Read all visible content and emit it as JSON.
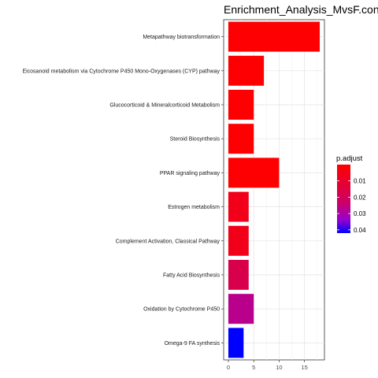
{
  "chart_data": {
    "type": "bar",
    "orientation": "horizontal",
    "title": "Enrichment_Analysis_MvsF.con_v",
    "xlabel": "",
    "ylabel": "",
    "xlim": [
      0,
      18
    ],
    "x_ticks": [
      0,
      5,
      10,
      15
    ],
    "grid": true,
    "legend": {
      "title": "p.adjust",
      "placement": "right",
      "type": "colorbar",
      "range": [
        0.0,
        0.042
      ],
      "ticks": [
        0.01,
        0.02,
        0.03,
        0.04
      ],
      "tick_labels": [
        "0.01",
        "0.02",
        "0.03",
        "0.04"
      ],
      "low_color": "#ff0000",
      "high_color": "#0000ff"
    },
    "categories": [
      "Metapathway biotransformation",
      "Eicosanoid metabolism via Cytochrome P450 Mono-Oxygenases (CYP) pathway",
      "Glucocorticoid & Mineralcorticoid Metabolism",
      "Steroid Biosynthesis",
      "PPAR signaling pathway",
      "Estrogen metabolism",
      "Complement Activation, Classical Pathway",
      "Fatty Acid Biosynthesis",
      "Oxidation by Cytochrome P450",
      "Omega-9 FA synthesis"
    ],
    "values": [
      18,
      7,
      5,
      5,
      10,
      4,
      4,
      4,
      5,
      3
    ],
    "p_adjust": [
      0.0003,
      0.0003,
      0.0005,
      0.0005,
      0.0005,
      0.006,
      0.006,
      0.017,
      0.027,
      0.042
    ]
  }
}
